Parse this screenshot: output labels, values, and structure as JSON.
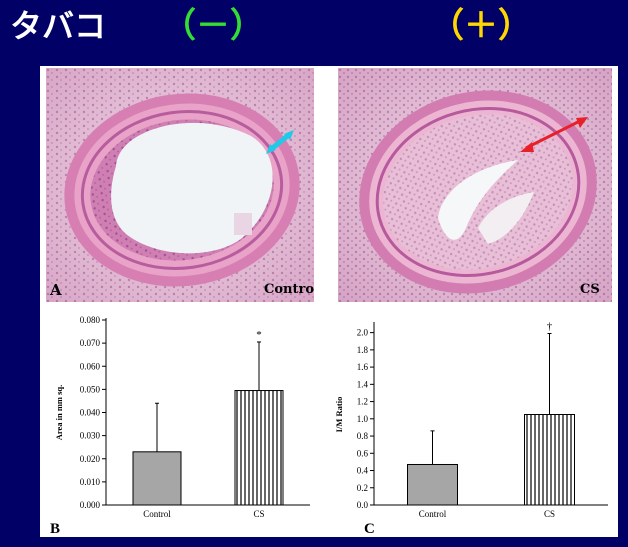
{
  "slide": {
    "title": "タバコ",
    "minus_label": "（－）",
    "plus_label": "（＋）"
  },
  "figure": {
    "panel_a": {
      "letter": "A",
      "caption": "Control"
    },
    "panel_a2": {
      "caption": "CS"
    },
    "arrow_colors": {
      "control": "#22c8e8",
      "cs": "#e8202a"
    }
  },
  "chart_data": [
    {
      "panel": "B",
      "type": "bar",
      "categories": [
        "Control",
        "CS"
      ],
      "values": [
        0.023,
        0.0495
      ],
      "error": [
        0.021,
        0.021
      ],
      "annotations": [
        "",
        "*"
      ],
      "ylabel": "Area in mm sq.",
      "ylim": [
        0,
        0.08
      ],
      "yticks": [
        "0.000",
        "0.010",
        "0.020",
        "0.030",
        "0.040",
        "0.050",
        "0.060",
        "0.070",
        "0.080"
      ],
      "fill": [
        "solid-gray",
        "vertical-stripes"
      ]
    },
    {
      "panel": "C",
      "type": "bar",
      "categories": [
        "Control",
        "CS"
      ],
      "values": [
        0.47,
        1.05
      ],
      "error": [
        0.39,
        0.94
      ],
      "annotations": [
        "",
        "†"
      ],
      "ylabel": "I/M Ratio",
      "ylim": [
        0,
        2.1
      ],
      "yticks": [
        "0.0",
        "0.2",
        "0.4",
        "0.6",
        "0.8",
        "1.0",
        "1.2",
        "1.4",
        "1.6",
        "1.8",
        "2.0"
      ],
      "fill": [
        "solid-gray",
        "vertical-stripes"
      ]
    }
  ]
}
